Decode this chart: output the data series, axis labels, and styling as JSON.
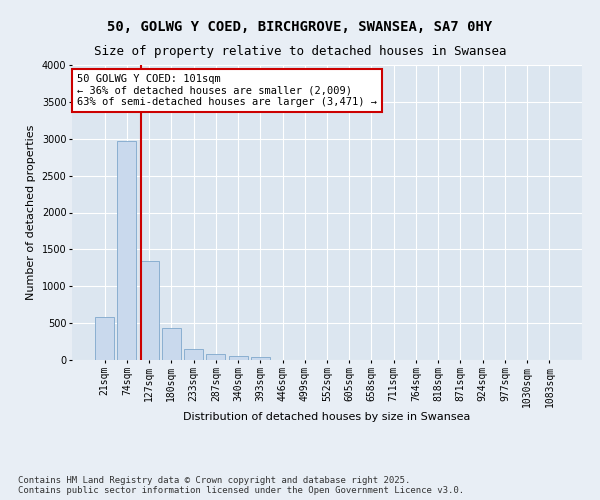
{
  "title_line1": "50, GOLWG Y COED, BIRCHGROVE, SWANSEA, SA7 0HY",
  "title_line2": "Size of property relative to detached houses in Swansea",
  "xlabel": "Distribution of detached houses by size in Swansea",
  "ylabel": "Number of detached properties",
  "categories": [
    "21sqm",
    "74sqm",
    "127sqm",
    "180sqm",
    "233sqm",
    "287sqm",
    "340sqm",
    "393sqm",
    "446sqm",
    "499sqm",
    "552sqm",
    "605sqm",
    "658sqm",
    "711sqm",
    "764sqm",
    "818sqm",
    "871sqm",
    "924sqm",
    "977sqm",
    "1030sqm",
    "1083sqm"
  ],
  "bar_values": [
    580,
    2970,
    1340,
    430,
    155,
    75,
    50,
    40,
    0,
    0,
    0,
    0,
    0,
    0,
    0,
    0,
    0,
    0,
    0,
    0,
    0
  ],
  "bar_color": "#c9d9ed",
  "bar_edge_color": "#7fa8cc",
  "ylim": [
    0,
    4000
  ],
  "yticks": [
    0,
    500,
    1000,
    1500,
    2000,
    2500,
    3000,
    3500,
    4000
  ],
  "vline_x": 1.63,
  "vline_color": "#cc0000",
  "annotation_text": "50 GOLWG Y COED: 101sqm\n← 36% of detached houses are smaller (2,009)\n63% of semi-detached houses are larger (3,471) →",
  "annotation_box_color": "#ffffff",
  "annotation_box_edge": "#cc0000",
  "background_color": "#e8eef5",
  "plot_bg_color": "#dce6f0",
  "grid_color": "#ffffff",
  "footnote": "Contains HM Land Registry data © Crown copyright and database right 2025.\nContains public sector information licensed under the Open Government Licence v3.0.",
  "title_fontsize": 10,
  "subtitle_fontsize": 9,
  "axis_label_fontsize": 8,
  "tick_fontsize": 7,
  "annotation_fontsize": 7.5,
  "footnote_fontsize": 6.5
}
